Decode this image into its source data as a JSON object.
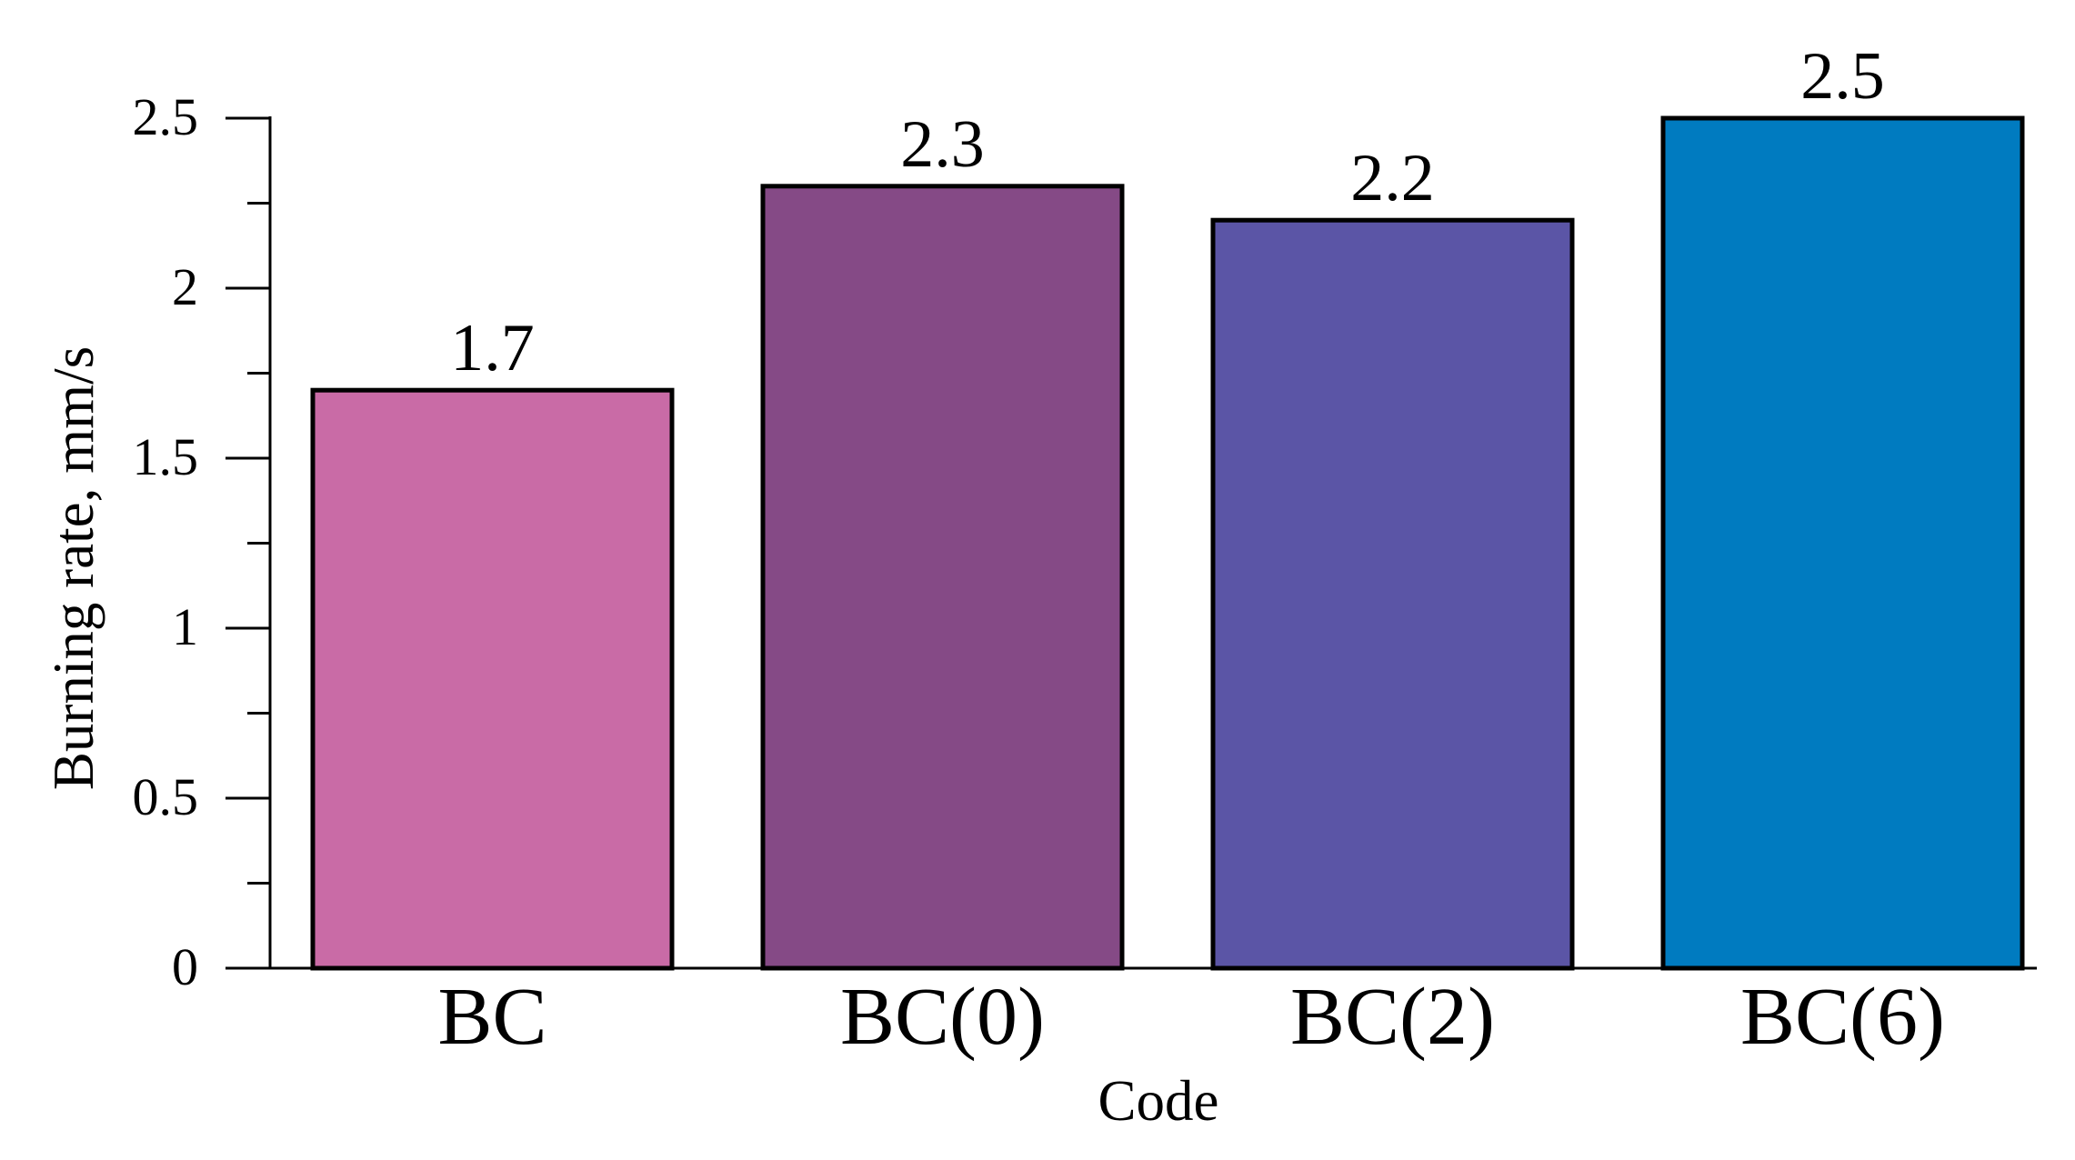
{
  "chart_data": {
    "type": "bar",
    "title": "",
    "xlabel": "Code",
    "ylabel": "Burning rate, mm/s",
    "categories": [
      "BC",
      "BC(0)",
      "BC(2)",
      "BC(6)"
    ],
    "values": [
      1.7,
      2.3,
      2.2,
      2.5
    ],
    "data_labels": [
      "1.7",
      "2.3",
      "2.2",
      "2.5"
    ],
    "colors": [
      "#C96BA6",
      "#854A86",
      "#5B55A6",
      "#007BC0"
    ],
    "ylim": [
      0,
      2.5
    ],
    "yticks": [
      0,
      0.5,
      1,
      1.5,
      2,
      2.5
    ],
    "ytick_labels": [
      "0",
      "0.5",
      "1",
      "1.5",
      "2",
      "2.5"
    ],
    "grid": false,
    "legend": "none"
  }
}
